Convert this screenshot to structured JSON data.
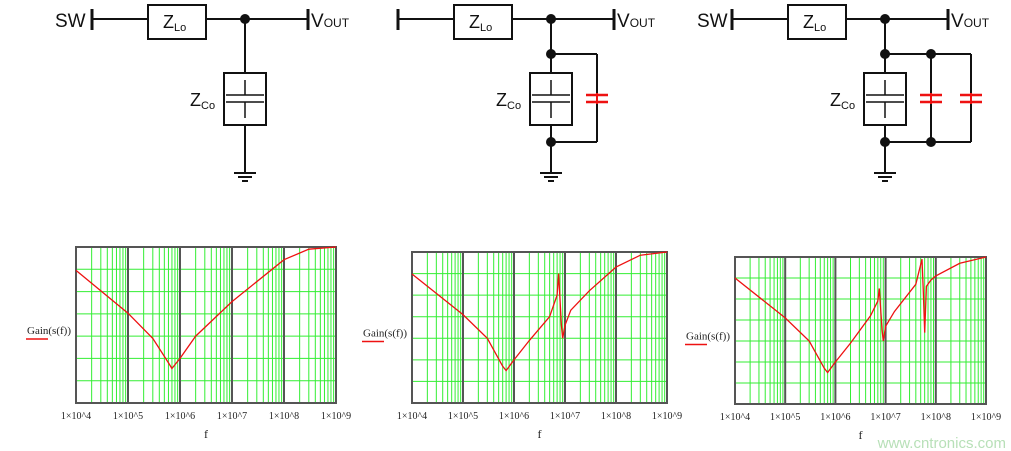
{
  "circuits": [
    {
      "input_label": "SW",
      "series_label": "Z",
      "series_sub": "Lo",
      "output_label": "V",
      "output_sub": "OUT",
      "shunt_label": "Z",
      "shunt_sub": "Co",
      "extra_caps": 0
    },
    {
      "input_label": "",
      "series_label": "Z",
      "series_sub": "Lo",
      "output_label": "V",
      "output_sub": "OUT",
      "shunt_label": "Z",
      "shunt_sub": "Co",
      "extra_caps": 1
    },
    {
      "input_label": "SW",
      "series_label": "Z",
      "series_sub": "Lo",
      "output_label": "V",
      "output_sub": "OUT",
      "shunt_label": "Z",
      "shunt_sub": "Co",
      "extra_caps": 2
    }
  ],
  "colors": {
    "grid": "#33ee33",
    "major_grid": "#555555",
    "curve": "#ee1111",
    "extra_cap": "#ee1111",
    "watermark": "#b8e0b8"
  },
  "watermark": "www.cntronics.com",
  "chart_data": [
    {
      "type": "line",
      "xlabel": "f",
      "ylabel": "Gain(s(f))",
      "xscale": "log",
      "xlim": [
        10000,
        1000000000
      ],
      "x_ticks": [
        "1×10^4",
        "1×10^5",
        "1×10^6",
        "1×10^7",
        "1×10^8",
        "1×10^9"
      ],
      "y_tick_labels": "none",
      "ylim": [
        0,
        7
      ],
      "grid": true,
      "series": [
        {
          "x": [
            10000.0,
            100000.0,
            300000.0,
            600000.0,
            700000.0,
            1000000.0,
            2000000.0,
            10000000.0,
            100000000.0,
            300000000.0,
            1000000000.0
          ],
          "y": [
            5.95,
            4.03,
            2.9,
            1.8,
            1.55,
            2.0,
            3.0,
            4.55,
            6.43,
            6.9,
            7.0
          ]
        }
      ]
    },
    {
      "type": "line",
      "xlabel": "f",
      "ylabel": "Gain(s(f))",
      "xscale": "log",
      "xlim": [
        10000,
        1000000000
      ],
      "x_ticks": [
        "1×10^4",
        "1×10^5",
        "1×10^6",
        "1×10^7",
        "1×10^8",
        "1×10^9"
      ],
      "y_tick_labels": "none",
      "ylim": [
        0,
        7
      ],
      "grid": true,
      "series": [
        {
          "x": [
            10000.0,
            100000.0,
            300000.0,
            600000.0,
            700000.0,
            1000000.0,
            2000000.0,
            5000000.0,
            7000000.0,
            7500000.0,
            8500000.0,
            9000000.0,
            10000000.0,
            13000000.0,
            30000000.0,
            100000000.0,
            300000000.0,
            1000000000.0
          ],
          "y": [
            5.98,
            4.1,
            3.0,
            1.7,
            1.5,
            2.0,
            2.9,
            4.0,
            5.0,
            6.0,
            3.6,
            3.0,
            3.6,
            4.3,
            5.2,
            6.3,
            6.85,
            7.0
          ]
        }
      ]
    },
    {
      "type": "line",
      "xlabel": "f",
      "ylabel": "Gain(s(f))",
      "xscale": "log",
      "xlim": [
        10000,
        1000000000
      ],
      "x_ticks": [
        "1×10^4",
        "1×10^5",
        "1×10^6",
        "1×10^7",
        "1×10^8",
        "1×10^9"
      ],
      "y_tick_labels": "none",
      "ylim": [
        0,
        7
      ],
      "grid": true,
      "series": [
        {
          "x": [
            10000.0,
            100000.0,
            300000.0,
            600000.0,
            700000.0,
            1000000.0,
            2000000.0,
            5000000.0,
            7000000.0,
            7500000.0,
            8500000.0,
            9000000.0,
            10000000.0,
            15000000.0,
            40000000.0,
            53000000.0,
            56000000.0,
            60000000.0,
            65000000.0,
            80000000.0,
            100000000.0,
            300000000.0,
            1000000000.0
          ],
          "y": [
            6.0,
            4.1,
            3.0,
            1.7,
            1.5,
            2.0,
            2.9,
            4.2,
            4.9,
            5.5,
            3.5,
            3.0,
            3.7,
            4.4,
            5.7,
            6.9,
            5.5,
            3.4,
            5.6,
            5.9,
            6.1,
            6.7,
            7.0
          ]
        }
      ]
    }
  ]
}
